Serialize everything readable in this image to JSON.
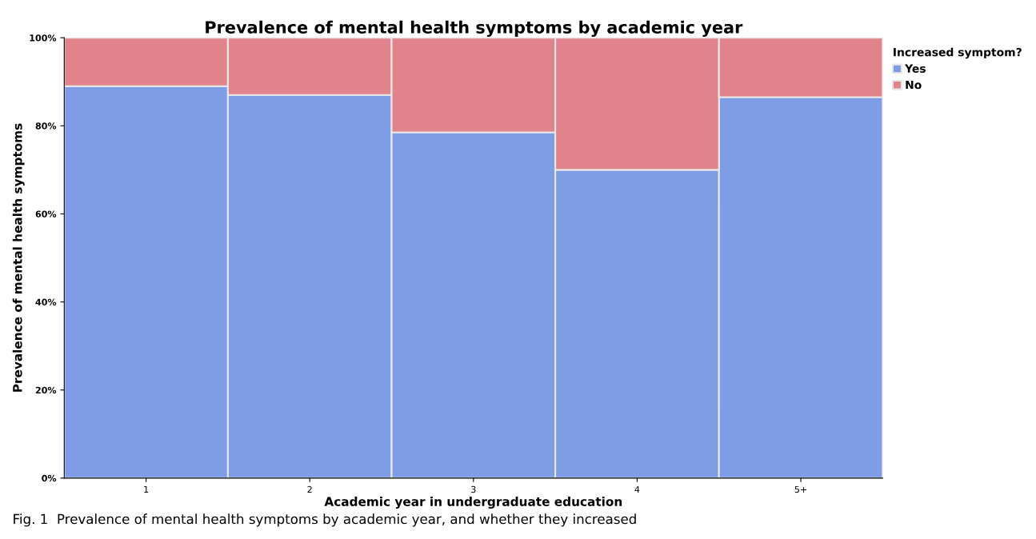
{
  "chart_data": {
    "type": "bar",
    "stacked": true,
    "title": "Prevalence of mental health symptoms by academic year",
    "xlabel": "Academic year in undergraduate education",
    "ylabel": "Prevalence of mental health symptoms",
    "legend_title": "Increased symptom?",
    "legend": "top right",
    "categories": [
      "1",
      "2",
      "3",
      "4",
      "5+"
    ],
    "series": [
      {
        "name": "Yes",
        "color": "#7f9de6",
        "values": [
          89,
          87,
          78.5,
          70,
          86.5
        ]
      },
      {
        "name": "No",
        "color": "#e0838b",
        "values": [
          11,
          13,
          21.5,
          30,
          13.5
        ]
      }
    ],
    "ylim": [
      0,
      100
    ],
    "yticks": [
      {
        "value": 0,
        "label": "0%"
      },
      {
        "value": 20,
        "label": "20%"
      },
      {
        "value": 40,
        "label": "40%"
      },
      {
        "value": 60,
        "label": "60%"
      },
      {
        "value": 80,
        "label": "80%"
      },
      {
        "value": 100,
        "label": "100%"
      }
    ],
    "grid": false,
    "annotations": [
      "Fig. 1  Prevalence of mental health symptoms by academic year, and whether they increased"
    ]
  }
}
